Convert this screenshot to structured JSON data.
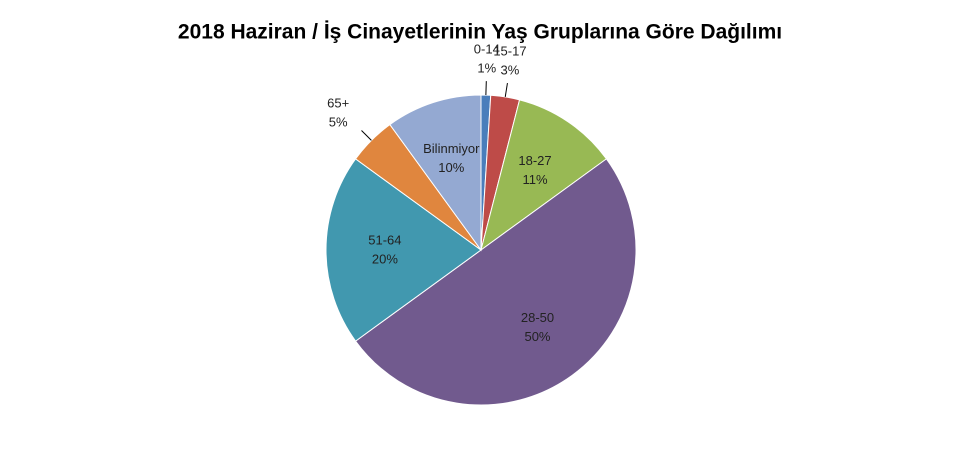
{
  "chart_data": {
    "type": "pie",
    "title": "2018 Haziran / İş Cinayetlerinin Yaş Gruplarına Göre Dağılımı",
    "categories": [
      "0-14",
      "15-17",
      "18-27",
      "28-50",
      "51-64",
      "65+",
      "Bilinmiyor"
    ],
    "values": [
      1,
      3,
      11,
      50,
      20,
      5,
      10
    ],
    "value_labels": [
      "1%",
      "3%",
      "11%",
      "50%",
      "20%",
      "5%",
      "10%"
    ],
    "colors": [
      "#4a7ebb",
      "#be4b48",
      "#98b954",
      "#715a8e",
      "#4198af",
      "#e0863e",
      "#94a9d2"
    ]
  }
}
